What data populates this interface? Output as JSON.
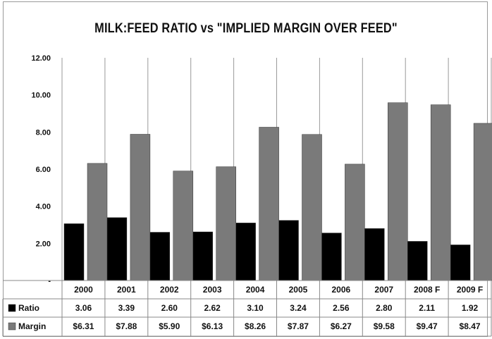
{
  "chart_data": {
    "type": "bar",
    "title": "MILK:FEED RATIO vs \"IMPLIED MARGIN OVER FEED\"",
    "xlabel": "",
    "ylabel": "",
    "categories": [
      "2000",
      "2001",
      "2002",
      "2003",
      "2004",
      "2005",
      "2006",
      "2007",
      "2008 F",
      "2009 F"
    ],
    "series": [
      {
        "name": "Ratio",
        "color": "#000000",
        "values": [
          3.06,
          3.39,
          2.6,
          2.62,
          3.1,
          3.24,
          2.56,
          2.8,
          2.11,
          1.92
        ],
        "table_labels": [
          "3.06",
          "3.39",
          "2.60",
          "2.62",
          "3.10",
          "3.24",
          "2.56",
          "2.80",
          "2.11",
          "1.92"
        ]
      },
      {
        "name": "Margin",
        "color": "#7a7a7a",
        "values": [
          6.31,
          7.88,
          5.9,
          6.13,
          8.26,
          7.87,
          6.27,
          9.58,
          9.47,
          8.47
        ],
        "table_labels": [
          "$6.31",
          "$7.88",
          "$5.90",
          "$6.13",
          "$8.26",
          "$7.87",
          "$6.27",
          "$9.58",
          "$9.47",
          "$8.47"
        ]
      }
    ],
    "ylim": [
      0,
      12
    ],
    "yticks": [
      "-",
      "2.00",
      "4.00",
      "6.00",
      "8.00",
      "10.00",
      "12.00"
    ],
    "grid": "vertical category separators",
    "legend": "data table"
  }
}
